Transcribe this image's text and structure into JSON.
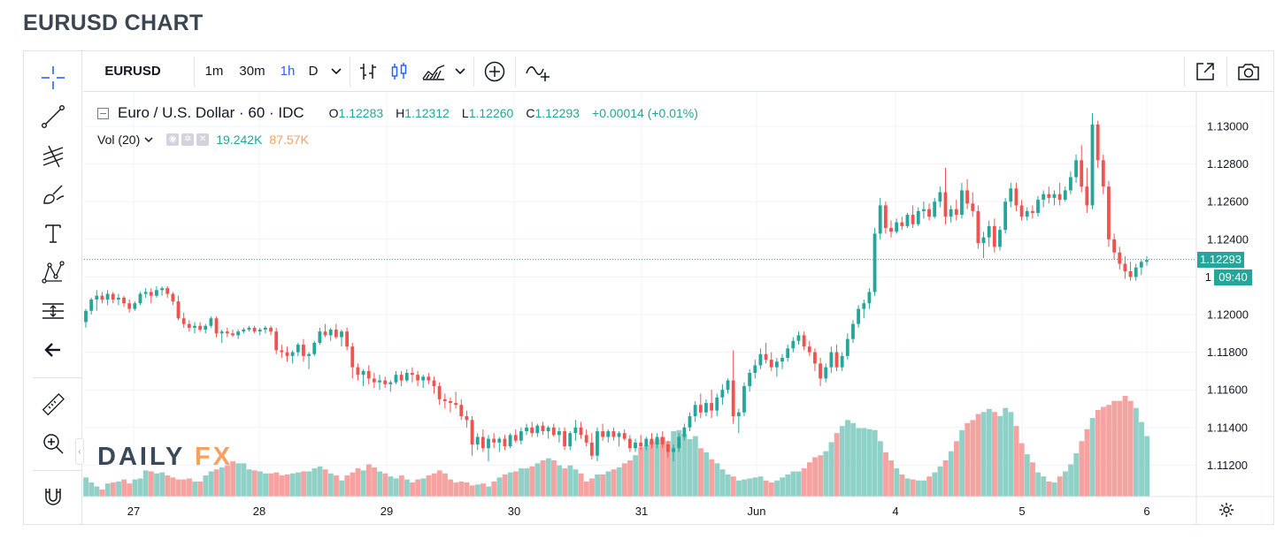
{
  "page": {
    "title": "EURUSD CHART"
  },
  "toolbar": {
    "symbol": "EURUSD",
    "intervals": [
      "1m",
      "30m",
      "1h",
      "D"
    ],
    "active_interval": "1h"
  },
  "legend": {
    "title": "Euro / U.S. Dollar · 60 · IDC",
    "open_label": "O",
    "open": "1.12283",
    "high_label": "H",
    "high": "1.12312",
    "low_label": "L",
    "low": "1.12260",
    "close_label": "C",
    "close": "1.12293",
    "change": "+0.00014 (+0.01%)"
  },
  "volume_legend": {
    "label": "Vol (20)",
    "value": "19.242K",
    "ma": "87.57K"
  },
  "price_axis": {
    "current_price": "1.12293",
    "countdown": "09:40",
    "partial_label": "1"
  },
  "watermark": {
    "text_a": "DAILY",
    "text_b": "FX"
  },
  "colors": {
    "up": "#26a69a",
    "down": "#ef5350",
    "vol_up": "#8fd0c7",
    "vol_down": "#f5a3a1",
    "accent": "#2962ff",
    "brand_orange": "#f7a15e"
  },
  "icons": [
    "crosshair-icon",
    "trend-line-icon",
    "pitchfork-icon",
    "brush-icon",
    "text-icon",
    "pattern-icon",
    "measure-tools-icon",
    "back-arrow-icon",
    "ruler-icon",
    "zoom-in-icon",
    "magnet-icon",
    "bar-style-icon",
    "candle-style-icon",
    "area-style-icon",
    "add-indicator-icon",
    "compare-icon",
    "fullscreen-icon",
    "camera-icon",
    "settings-gear-icon"
  ],
  "chart_data": {
    "type": "candlestick",
    "title": "Euro / U.S. Dollar",
    "timeframe": "60",
    "y_axis": {
      "ticks": [
        "1.13000",
        "1.12800",
        "1.12600",
        "1.12400",
        "1.12200",
        "1.12000",
        "1.11800",
        "1.11600",
        "1.11400",
        "1.11200"
      ],
      "range": [
        1.1105,
        1.1308
      ]
    },
    "x_axis": {
      "ticks": [
        "27",
        "28",
        "29",
        "30",
        "31",
        "Jun",
        "4",
        "5",
        "6"
      ]
    },
    "candles_ohlc_hourly_approx": [
      [
        1.1196,
        1.1203,
        1.1193,
        1.1202
      ],
      [
        1.1202,
        1.1209,
        1.12,
        1.1208
      ],
      [
        1.1208,
        1.1213,
        1.1202,
        1.121
      ],
      [
        1.121,
        1.1212,
        1.1206,
        1.1208
      ],
      [
        1.1208,
        1.1213,
        1.1205,
        1.1211
      ],
      [
        1.1211,
        1.1212,
        1.1206,
        1.1208
      ],
      [
        1.1208,
        1.1211,
        1.1205,
        1.1209
      ],
      [
        1.1209,
        1.121,
        1.1204,
        1.1206
      ],
      [
        1.1206,
        1.1208,
        1.1201,
        1.1203
      ],
      [
        1.1203,
        1.1207,
        1.1202,
        1.1206
      ],
      [
        1.1206,
        1.1212,
        1.1205,
        1.1211
      ],
      [
        1.1211,
        1.1214,
        1.1209,
        1.1212
      ],
      [
        1.1212,
        1.1214,
        1.1206,
        1.121
      ],
      [
        1.121,
        1.1215,
        1.1209,
        1.1213
      ],
      [
        1.1213,
        1.1215,
        1.121,
        1.1214
      ],
      [
        1.1214,
        1.1215,
        1.1209,
        1.1211
      ],
      [
        1.1211,
        1.1212,
        1.1205,
        1.1207
      ],
      [
        1.1207,
        1.121,
        1.1197,
        1.1198
      ],
      [
        1.1198,
        1.1201,
        1.1193,
        1.1195
      ],
      [
        1.1195,
        1.1197,
        1.1191,
        1.1193
      ],
      [
        1.1193,
        1.1196,
        1.119,
        1.1194
      ],
      [
        1.1194,
        1.1196,
        1.1191,
        1.1192
      ],
      [
        1.1192,
        1.1195,
        1.119,
        1.1194
      ],
      [
        1.1194,
        1.1199,
        1.1193,
        1.1198
      ],
      [
        1.1198,
        1.1199,
        1.1188,
        1.119
      ],
      [
        1.119,
        1.1192,
        1.1185,
        1.1191
      ],
      [
        1.1191,
        1.1193,
        1.1188,
        1.119
      ],
      [
        1.119,
        1.1192,
        1.1188,
        1.1189
      ],
      [
        1.1189,
        1.1192,
        1.1187,
        1.1191
      ],
      [
        1.1191,
        1.1193,
        1.119,
        1.1192
      ],
      [
        1.1192,
        1.1194,
        1.1191,
        1.1193
      ],
      [
        1.1193,
        1.1194,
        1.119,
        1.1191
      ],
      [
        1.1191,
        1.1193,
        1.1189,
        1.1192
      ],
      [
        1.1192,
        1.1194,
        1.119,
        1.1193
      ],
      [
        1.1193,
        1.1194,
        1.1189,
        1.1191
      ],
      [
        1.1191,
        1.1193,
        1.1179,
        1.1181
      ],
      [
        1.1181,
        1.1184,
        1.1177,
        1.118
      ],
      [
        1.118,
        1.1183,
        1.1175,
        1.1178
      ],
      [
        1.1178,
        1.1181,
        1.1174,
        1.118
      ],
      [
        1.118,
        1.1185,
        1.1178,
        1.1184
      ],
      [
        1.1184,
        1.1187,
        1.1175,
        1.1178
      ],
      [
        1.1178,
        1.118,
        1.1171,
        1.1179
      ],
      [
        1.1179,
        1.1186,
        1.1178,
        1.1185
      ],
      [
        1.1185,
        1.1193,
        1.1184,
        1.1191
      ],
      [
        1.1191,
        1.1195,
        1.1188,
        1.1189
      ],
      [
        1.1189,
        1.1193,
        1.1186,
        1.1192
      ],
      [
        1.1192,
        1.1195,
        1.1187,
        1.1188
      ],
      [
        1.1188,
        1.1192,
        1.1183,
        1.1191
      ],
      [
        1.1191,
        1.1193,
        1.1181,
        1.1183
      ],
      [
        1.1183,
        1.1185,
        1.1166,
        1.1172
      ],
      [
        1.1172,
        1.1174,
        1.1165,
        1.1168
      ],
      [
        1.1168,
        1.1171,
        1.1162,
        1.117
      ],
      [
        1.117,
        1.1173,
        1.1163,
        1.1166
      ],
      [
        1.1166,
        1.1169,
        1.1161,
        1.1164
      ],
      [
        1.1164,
        1.1168,
        1.116,
        1.1165
      ],
      [
        1.1165,
        1.1167,
        1.1161,
        1.1163
      ],
      [
        1.1163,
        1.1165,
        1.1159,
        1.1164
      ],
      [
        1.1164,
        1.117,
        1.1163,
        1.1168
      ],
      [
        1.1168,
        1.117,
        1.1162,
        1.1165
      ],
      [
        1.1165,
        1.1171,
        1.1164,
        1.1169
      ],
      [
        1.1169,
        1.1172,
        1.1164,
        1.1168
      ],
      [
        1.1168,
        1.117,
        1.1162,
        1.1165
      ],
      [
        1.1165,
        1.1168,
        1.1161,
        1.1167
      ],
      [
        1.1167,
        1.1169,
        1.1163,
        1.1165
      ],
      [
        1.1165,
        1.1167,
        1.1158,
        1.1162
      ],
      [
        1.1162,
        1.1164,
        1.1152,
        1.1155
      ],
      [
        1.1155,
        1.1158,
        1.115,
        1.1154
      ],
      [
        1.1154,
        1.1156,
        1.1148,
        1.1153
      ],
      [
        1.1153,
        1.1159,
        1.115,
        1.1152
      ],
      [
        1.1152,
        1.1155,
        1.1144,
        1.1146
      ],
      [
        1.1146,
        1.1149,
        1.114,
        1.1144
      ],
      [
        1.1144,
        1.1146,
        1.1125,
        1.1131
      ],
      [
        1.1131,
        1.1137,
        1.1128,
        1.1135
      ],
      [
        1.1135,
        1.1139,
        1.1127,
        1.1129
      ],
      [
        1.1129,
        1.1136,
        1.1122,
        1.1134
      ],
      [
        1.1134,
        1.1137,
        1.1129,
        1.1132
      ],
      [
        1.1132,
        1.1135,
        1.1127,
        1.1134
      ],
      [
        1.1134,
        1.1136,
        1.1128,
        1.113
      ],
      [
        1.113,
        1.1137,
        1.1129,
        1.1136
      ],
      [
        1.1136,
        1.1139,
        1.1132,
        1.1133
      ],
      [
        1.1133,
        1.114,
        1.1131,
        1.1138
      ],
      [
        1.1138,
        1.1142,
        1.1136,
        1.114
      ],
      [
        1.114,
        1.1143,
        1.1135,
        1.1137
      ],
      [
        1.1137,
        1.1142,
        1.1135,
        1.1141
      ],
      [
        1.1141,
        1.1143,
        1.1136,
        1.1138
      ],
      [
        1.1138,
        1.1141,
        1.1134,
        1.114
      ],
      [
        1.114,
        1.1142,
        1.1135,
        1.1136
      ],
      [
        1.1136,
        1.114,
        1.1132,
        1.1138
      ],
      [
        1.1138,
        1.114,
        1.1128,
        1.113
      ],
      [
        1.113,
        1.1138,
        1.1128,
        1.1137
      ],
      [
        1.1137,
        1.1144,
        1.1133,
        1.114
      ],
      [
        1.114,
        1.1143,
        1.1134,
        1.1136
      ],
      [
        1.1136,
        1.1139,
        1.113,
        1.1132
      ],
      [
        1.1132,
        1.1137,
        1.1123,
        1.1125
      ],
      [
        1.1125,
        1.114,
        1.1122,
        1.1138
      ],
      [
        1.1138,
        1.1142,
        1.1133,
        1.1135
      ],
      [
        1.1135,
        1.1139,
        1.1132,
        1.1138
      ],
      [
        1.1138,
        1.114,
        1.1133,
        1.1135
      ],
      [
        1.1135,
        1.1138,
        1.113,
        1.1137
      ],
      [
        1.1137,
        1.1139,
        1.1133,
        1.1134
      ],
      [
        1.1134,
        1.1136,
        1.1127,
        1.1129
      ],
      [
        1.1129,
        1.1134,
        1.1127,
        1.1132
      ],
      [
        1.1132,
        1.1136,
        1.1128,
        1.113
      ],
      [
        1.113,
        1.1135,
        1.1128,
        1.1134
      ],
      [
        1.1134,
        1.1137,
        1.1129,
        1.1131
      ],
      [
        1.1131,
        1.1137,
        1.1129,
        1.1135
      ],
      [
        1.1135,
        1.1138,
        1.1129,
        1.1131
      ],
      [
        1.1131,
        1.1133,
        1.1124,
        1.1127
      ],
      [
        1.1127,
        1.1131,
        1.1122,
        1.1129
      ],
      [
        1.1129,
        1.1137,
        1.1127,
        1.1135
      ],
      [
        1.1135,
        1.1142,
        1.1133,
        1.114
      ],
      [
        1.114,
        1.1148,
        1.1138,
        1.1146
      ],
      [
        1.1146,
        1.1154,
        1.1143,
        1.1152
      ],
      [
        1.1152,
        1.1158,
        1.1145,
        1.1148
      ],
      [
        1.1148,
        1.1155,
        1.1146,
        1.1153
      ],
      [
        1.1153,
        1.116,
        1.1145,
        1.1149
      ],
      [
        1.1149,
        1.1158,
        1.1146,
        1.1156
      ],
      [
        1.1156,
        1.1163,
        1.1152,
        1.116
      ],
      [
        1.116,
        1.1166,
        1.1158,
        1.1165
      ],
      [
        1.1165,
        1.1181,
        1.1142,
        1.1146
      ],
      [
        1.1146,
        1.115,
        1.1137,
        1.1148
      ],
      [
        1.1148,
        1.1164,
        1.1146,
        1.1162
      ],
      [
        1.1162,
        1.1171,
        1.1159,
        1.1169
      ],
      [
        1.1169,
        1.1176,
        1.1166,
        1.1173
      ],
      [
        1.1173,
        1.1182,
        1.1171,
        1.1179
      ],
      [
        1.1179,
        1.1185,
        1.1174,
        1.1176
      ],
      [
        1.1176,
        1.118,
        1.117,
        1.1172
      ],
      [
        1.1172,
        1.1177,
        1.1167,
        1.1175
      ],
      [
        1.1175,
        1.1179,
        1.1171,
        1.1177
      ],
      [
        1.1177,
        1.1184,
        1.1175,
        1.1182
      ],
      [
        1.1182,
        1.1188,
        1.118,
        1.1186
      ],
      [
        1.1186,
        1.1191,
        1.1184,
        1.1189
      ],
      [
        1.1189,
        1.1191,
        1.1181,
        1.1183
      ],
      [
        1.1183,
        1.1186,
        1.1178,
        1.118
      ],
      [
        1.118,
        1.1182,
        1.117,
        1.1174
      ],
      [
        1.1174,
        1.1177,
        1.1162,
        1.1166
      ],
      [
        1.1166,
        1.1174,
        1.1164,
        1.1172
      ],
      [
        1.1172,
        1.1183,
        1.1169,
        1.118
      ],
      [
        1.118,
        1.1184,
        1.117,
        1.1172
      ],
      [
        1.1172,
        1.118,
        1.117,
        1.1178
      ],
      [
        1.1178,
        1.119,
        1.1176,
        1.1187
      ],
      [
        1.1187,
        1.1197,
        1.1185,
        1.1195
      ],
      [
        1.1195,
        1.1205,
        1.1193,
        1.1203
      ],
      [
        1.1203,
        1.1208,
        1.1198,
        1.1206
      ],
      [
        1.1206,
        1.1214,
        1.1203,
        1.1212
      ],
      [
        1.1212,
        1.1246,
        1.121,
        1.1243
      ],
      [
        1.1243,
        1.1262,
        1.124,
        1.1258
      ],
      [
        1.1258,
        1.126,
        1.1243,
        1.1246
      ],
      [
        1.1246,
        1.125,
        1.1241,
        1.1244
      ],
      [
        1.1244,
        1.1251,
        1.1243,
        1.1249
      ],
      [
        1.1249,
        1.1252,
        1.1245,
        1.1247
      ],
      [
        1.1247,
        1.1254,
        1.1246,
        1.1253
      ],
      [
        1.1253,
        1.1258,
        1.1246,
        1.1248
      ],
      [
        1.1248,
        1.1257,
        1.1247,
        1.1255
      ],
      [
        1.1255,
        1.126,
        1.1251,
        1.1256
      ],
      [
        1.1256,
        1.1259,
        1.125,
        1.1252
      ],
      [
        1.1252,
        1.1262,
        1.1251,
        1.126
      ],
      [
        1.126,
        1.1268,
        1.1257,
        1.1265
      ],
      [
        1.1265,
        1.1278,
        1.1248,
        1.1252
      ],
      [
        1.1252,
        1.1258,
        1.1249,
        1.1256
      ],
      [
        1.1256,
        1.1261,
        1.125,
        1.1253
      ],
      [
        1.1253,
        1.127,
        1.1251,
        1.1266
      ],
      [
        1.1266,
        1.1272,
        1.1256,
        1.1259
      ],
      [
        1.1259,
        1.1265,
        1.1252,
        1.1255
      ],
      [
        1.1255,
        1.1258,
        1.1235,
        1.1238
      ],
      [
        1.1238,
        1.1244,
        1.123,
        1.1241
      ],
      [
        1.1241,
        1.125,
        1.1236,
        1.1247
      ],
      [
        1.1247,
        1.1251,
        1.1233,
        1.1236
      ],
      [
        1.1236,
        1.1247,
        1.1234,
        1.1245
      ],
      [
        1.1245,
        1.1262,
        1.1243,
        1.126
      ],
      [
        1.126,
        1.127,
        1.1257,
        1.1267
      ],
      [
        1.1267,
        1.127,
        1.1255,
        1.1258
      ],
      [
        1.1258,
        1.1261,
        1.125,
        1.1252
      ],
      [
        1.1252,
        1.1257,
        1.125,
        1.1255
      ],
      [
        1.1255,
        1.1258,
        1.1251,
        1.1254
      ],
      [
        1.1254,
        1.1263,
        1.1252,
        1.1261
      ],
      [
        1.1261,
        1.1266,
        1.1257,
        1.1264
      ],
      [
        1.1264,
        1.1268,
        1.1259,
        1.1262
      ],
      [
        1.1262,
        1.1266,
        1.1258,
        1.1264
      ],
      [
        1.1264,
        1.127,
        1.1258,
        1.1261
      ],
      [
        1.1261,
        1.1268,
        1.126,
        1.1266
      ],
      [
        1.1266,
        1.1276,
        1.1264,
        1.1273
      ],
      [
        1.1273,
        1.1285,
        1.127,
        1.1282
      ],
      [
        1.1282,
        1.129,
        1.1265,
        1.1268
      ],
      [
        1.1268,
        1.1278,
        1.1254,
        1.1258
      ],
      [
        1.1258,
        1.1307,
        1.1256,
        1.1301
      ],
      [
        1.1301,
        1.1303,
        1.1278,
        1.1282
      ],
      [
        1.1282,
        1.1285,
        1.1264,
        1.1268
      ],
      [
        1.1268,
        1.1271,
        1.1236,
        1.124
      ],
      [
        1.124,
        1.1243,
        1.1229,
        1.1233
      ],
      [
        1.1233,
        1.1236,
        1.1224,
        1.1227
      ],
      [
        1.1227,
        1.1231,
        1.1219,
        1.1223
      ],
      [
        1.1223,
        1.1228,
        1.1218,
        1.122
      ],
      [
        1.122,
        1.1227,
        1.1218,
        1.1225
      ],
      [
        1.1225,
        1.1229,
        1.1221,
        1.1228
      ],
      [
        1.1228,
        1.1231,
        1.1226,
        1.1229
      ]
    ],
    "volume": [
      19,
      14,
      10,
      7,
      13,
      14,
      15,
      17,
      13,
      17,
      18,
      26,
      25,
      23,
      24,
      21,
      19,
      17,
      17,
      18,
      15,
      15,
      21,
      25,
      27,
      29,
      31,
      35,
      33,
      33,
      27,
      26,
      25,
      23,
      23,
      24,
      21,
      22,
      23,
      24,
      25,
      25,
      28,
      30,
      27,
      23,
      21,
      16,
      21,
      24,
      28,
      26,
      32,
      29,
      25,
      23,
      20,
      18,
      21,
      17,
      14,
      17,
      18,
      21,
      23,
      26,
      23,
      17,
      14,
      15,
      14,
      11,
      12,
      13,
      10,
      15,
      19,
      22,
      24,
      25,
      28,
      28,
      30,
      33,
      36,
      38,
      36,
      31,
      28,
      31,
      27,
      23,
      15,
      18,
      22,
      22,
      25,
      27,
      29,
      33,
      36,
      41,
      49,
      51,
      55,
      57,
      59,
      55,
      65,
      66,
      62,
      57,
      60,
      48,
      44,
      37,
      33,
      27,
      22,
      20,
      16,
      17,
      18,
      19,
      20,
      16,
      14,
      16,
      19,
      22,
      25,
      25,
      28,
      34,
      39,
      41,
      45,
      54,
      63,
      70,
      76,
      73,
      68,
      68,
      67,
      66,
      55,
      44,
      36,
      28,
      22,
      18,
      17,
      16,
      16,
      20,
      24,
      30,
      36,
      45,
      55,
      66,
      73,
      76,
      82,
      84,
      87,
      84,
      80,
      88,
      84,
      70,
      53,
      42,
      34,
      24,
      20,
      15,
      14,
      20,
      25,
      32,
      43,
      55,
      67,
      78,
      86,
      89,
      91,
      95,
      95,
      100,
      95,
      88,
      74,
      60,
      47,
      35,
      24,
      16,
      12,
      11,
      9,
      7
    ]
  }
}
